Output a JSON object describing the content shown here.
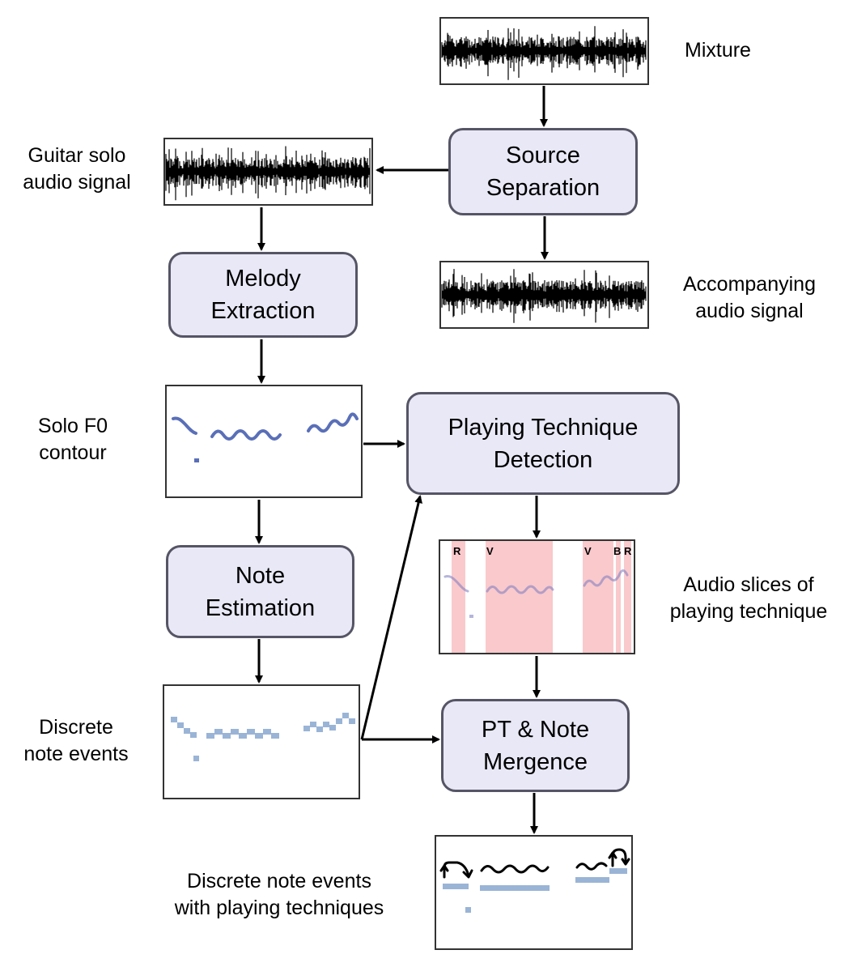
{
  "nodes": {
    "source_separation": [
      "Source",
      "Separation"
    ],
    "melody_extraction": [
      "Melody",
      "Extraction"
    ],
    "playing_technique_detection": [
      "Playing Technique",
      "Detection"
    ],
    "note_estimation": [
      "Note",
      "Estimation"
    ],
    "pt_note_mergence": [
      "PT & Note",
      "Mergence"
    ]
  },
  "labels": {
    "mixture": [
      "Mixture"
    ],
    "guitar_solo": [
      "Guitar solo",
      "audio signal"
    ],
    "accompanying": [
      "Accompanying",
      "audio signal"
    ],
    "solo_f0": [
      "Solo F0",
      "contour"
    ],
    "audio_slices": [
      "Audio slices of",
      "playing technique"
    ],
    "discrete_notes": [
      "Discrete",
      "note events"
    ],
    "discrete_notes_pt": [
      "Discrete note events",
      "with playing techniques"
    ]
  },
  "technique_markers": [
    "R",
    "V",
    "V",
    "B",
    "R"
  ],
  "colors": {
    "node_fill": "#e8e8f6",
    "node_border": "#555566",
    "contour": "#5a6fb8",
    "note": "#9ab4d6",
    "technique_highlight": "#f9c9cc"
  }
}
